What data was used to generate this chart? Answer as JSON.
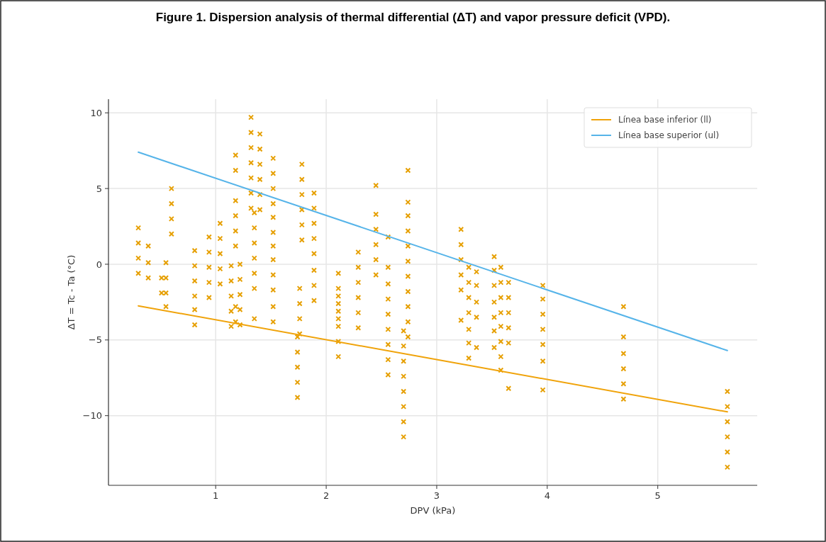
{
  "chart_data": {
    "type": "scatter",
    "title": "Figure 1. Dispersion analysis of thermal differential (ΔT) and vapor pressure deficit (VPD).",
    "xlabel": "DPV (kPa)",
    "ylabel": "ΔT = Tc - Ta (°C)",
    "xlim": [
      0.03,
      5.9
    ],
    "ylim": [
      -14.6,
      10.9
    ],
    "xticks": [
      1,
      2,
      3,
      4,
      5
    ],
    "yticks": [
      {
        "value": -10,
        "label": "−10"
      },
      {
        "value": -5,
        "label": "−5"
      },
      0,
      5,
      10
    ],
    "grid": true,
    "legend": "top right",
    "series": [
      {
        "color": "#e69f00",
        "marker": "cross",
        "x": [
          0.3,
          0.3,
          0.3,
          0.3,
          0.39,
          0.39,
          0.39,
          0.51,
          0.51,
          0.55,
          0.55,
          0.55,
          0.55,
          0.6,
          0.6,
          0.6,
          0.6,
          0.81,
          0.81,
          0.81,
          0.81,
          0.81,
          0.81,
          0.94,
          0.94,
          0.94,
          0.94,
          0.94,
          1.04,
          1.04,
          1.04,
          1.04,
          1.04,
          1.14,
          1.14,
          1.14,
          1.14,
          1.14,
          1.18,
          1.18,
          1.18,
          1.18,
          1.18,
          1.18,
          1.18,
          1.18,
          1.22,
          1.22,
          1.22,
          1.22,
          1.22,
          1.32,
          1.32,
          1.32,
          1.32,
          1.32,
          1.32,
          1.32,
          1.35,
          1.35,
          1.35,
          1.35,
          1.35,
          1.35,
          1.35,
          1.4,
          1.4,
          1.4,
          1.4,
          1.4,
          1.4,
          1.52,
          1.52,
          1.52,
          1.52,
          1.52,
          1.52,
          1.52,
          1.52,
          1.52,
          1.52,
          1.52,
          1.52,
          1.74,
          1.74,
          1.74,
          1.74,
          1.74,
          1.76,
          1.76,
          1.76,
          1.76,
          1.78,
          1.78,
          1.78,
          1.78,
          1.78,
          1.78,
          1.89,
          1.89,
          1.89,
          1.89,
          1.89,
          1.89,
          1.89,
          1.89,
          2.11,
          2.11,
          2.11,
          2.11,
          2.11,
          2.11,
          2.11,
          2.11,
          2.11,
          2.29,
          2.29,
          2.29,
          2.29,
          2.29,
          2.29,
          2.45,
          2.45,
          2.45,
          2.45,
          2.45,
          2.45,
          2.56,
          2.56,
          2.56,
          2.56,
          2.56,
          2.56,
          2.56,
          2.56,
          2.56,
          2.7,
          2.7,
          2.7,
          2.7,
          2.7,
          2.7,
          2.7,
          2.7,
          2.74,
          2.74,
          2.74,
          2.74,
          2.74,
          2.74,
          2.74,
          2.74,
          2.74,
          2.74,
          2.74,
          3.22,
          3.22,
          3.22,
          3.22,
          3.22,
          3.22,
          3.29,
          3.29,
          3.29,
          3.29,
          3.29,
          3.29,
          3.29,
          3.36,
          3.36,
          3.36,
          3.36,
          3.36,
          3.52,
          3.52,
          3.52,
          3.52,
          3.52,
          3.52,
          3.52,
          3.58,
          3.58,
          3.58,
          3.58,
          3.58,
          3.58,
          3.58,
          3.58,
          3.65,
          3.65,
          3.65,
          3.65,
          3.65,
          3.65,
          3.96,
          3.96,
          3.96,
          3.96,
          3.96,
          3.96,
          3.96,
          4.69,
          4.69,
          4.69,
          4.69,
          4.69,
          4.69,
          5.63,
          5.63,
          5.63,
          5.63,
          5.63,
          5.63
        ],
        "values": [
          2.4,
          1.4,
          0.4,
          -0.6,
          1.2,
          0.1,
          -0.9,
          -0.9,
          -1.9,
          0.1,
          -0.9,
          -1.9,
          -2.8,
          5,
          4,
          3,
          2,
          0.9,
          -0.1,
          -1.1,
          -2.1,
          -3.0,
          -4.0,
          1.8,
          0.8,
          -0.2,
          -1.2,
          -2.2,
          2.7,
          1.7,
          0.7,
          -0.3,
          -1.3,
          -0.1,
          -1.1,
          -2.1,
          -3.1,
          -4.1,
          7.2,
          6.2,
          4.2,
          3.2,
          2.2,
          1.2,
          -2.8,
          -3.8,
          0.0,
          -1.0,
          -2.0,
          -3.0,
          -4.0,
          9.7,
          8.7,
          7.7,
          6.7,
          5.7,
          4.7,
          3.7,
          3.4,
          2.4,
          1.4,
          0.4,
          -0.6,
          -1.6,
          -3.6,
          8.6,
          7.6,
          6.6,
          5.6,
          4.6,
          3.6,
          7.0,
          6.0,
          5.0,
          4.0,
          3.1,
          2.1,
          1.2,
          0.3,
          -0.7,
          -1.7,
          -2.8,
          -3.8,
          -4.8,
          -5.8,
          -6.8,
          -7.8,
          -8.8,
          -1.6,
          -2.6,
          -3.6,
          -4.6,
          6.6,
          5.6,
          4.6,
          3.6,
          2.6,
          1.6,
          4.7,
          3.7,
          2.7,
          1.7,
          0.7,
          -0.4,
          -1.4,
          -2.4,
          -0.6,
          -1.6,
          -2.1,
          -2.6,
          -3.1,
          -3.6,
          -4.1,
          -5.1,
          -6.1,
          0.8,
          -0.2,
          -1.2,
          -2.2,
          -3.2,
          -4.2,
          5.2,
          3.3,
          2.3,
          1.3,
          0.3,
          -0.7,
          1.8,
          -0.2,
          -1.3,
          -2.3,
          -3.3,
          -4.3,
          -5.3,
          -6.3,
          -7.3,
          -4.4,
          -5.4,
          -6.4,
          -7.4,
          -8.4,
          -9.4,
          -10.4,
          -11.4,
          6.2,
          4.1,
          3.2,
          2.2,
          1.2,
          0.2,
          -0.8,
          -1.8,
          -2.8,
          -3.8,
          -4.8,
          2.3,
          1.3,
          0.3,
          -0.7,
          -1.7,
          -3.7,
          -0.2,
          -1.2,
          -2.2,
          -3.2,
          -4.3,
          -5.2,
          -6.2,
          -0.5,
          -1.4,
          -2.5,
          -3.5,
          -5.5,
          0.5,
          -0.4,
          -1.4,
          -2.5,
          -3.5,
          -4.4,
          -5.5,
          -0.2,
          -1.2,
          -2.2,
          -3.2,
          -4.1,
          -5.1,
          -6.1,
          -7.0,
          -1.2,
          -2.2,
          -3.2,
          -4.2,
          -5.2,
          -8.2,
          -1.4,
          -2.3,
          -3.3,
          -4.3,
          -5.3,
          -6.4,
          -8.3,
          -2.8,
          -4.8,
          -5.9,
          -6.9,
          -7.9,
          -8.9,
          -8.4,
          -9.4,
          -10.4,
          -11.4,
          -12.4,
          -13.4
        ]
      },
      {
        "type": "line",
        "name": "Línea base inferior (ll)",
        "color": "#f0a30a",
        "x": [
          0.3,
          5.63
        ],
        "values": [
          -2.75,
          -9.75
        ]
      },
      {
        "type": "line",
        "name": "Línea base superior (ul)",
        "color": "#56b4e9",
        "x": [
          0.3,
          5.63
        ],
        "values": [
          7.4,
          -5.7
        ]
      }
    ]
  }
}
